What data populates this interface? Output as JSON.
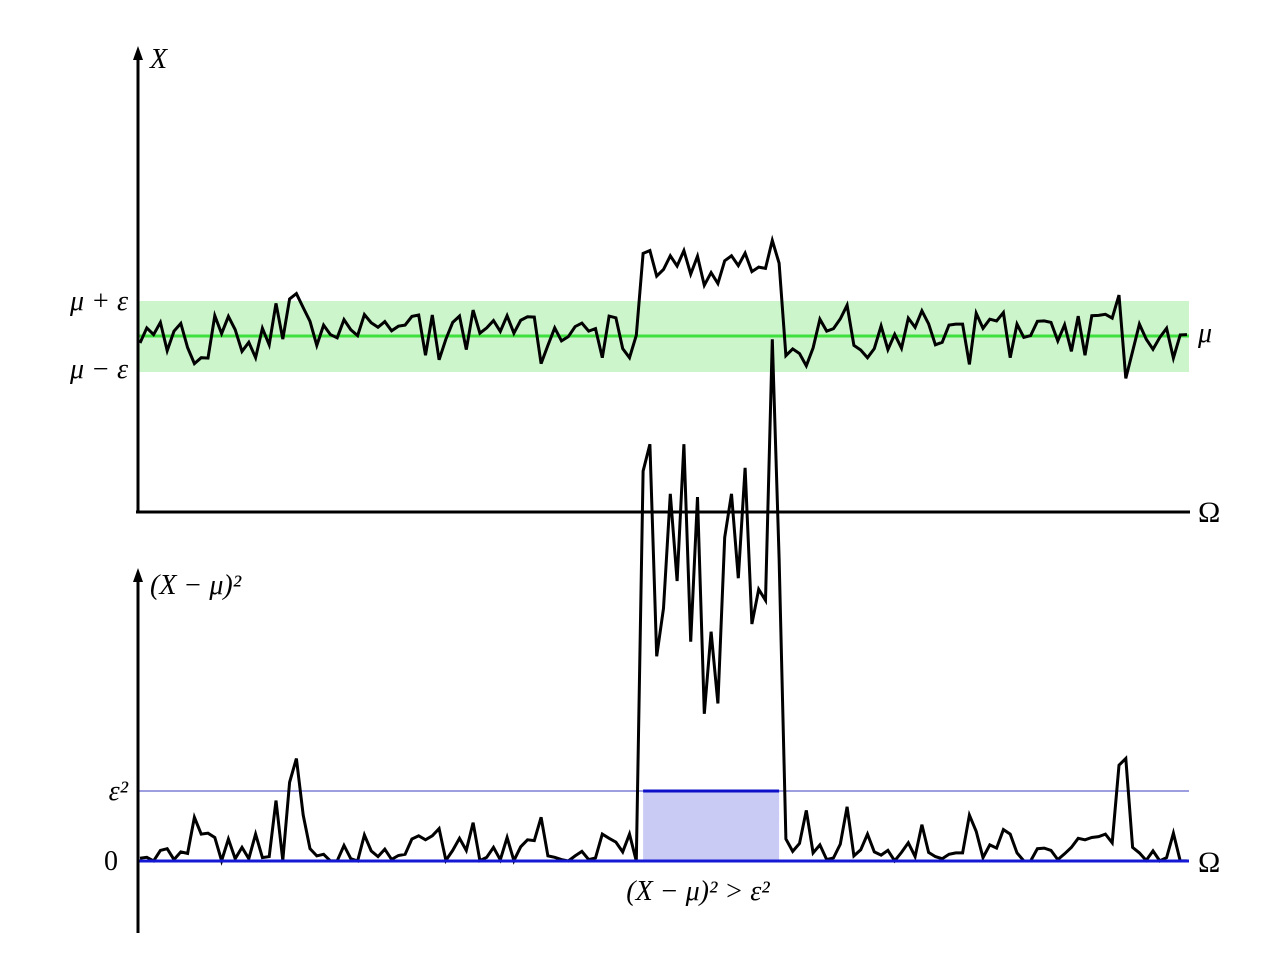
{
  "top_panel": {
    "y_axis_label": "X",
    "x_axis_label": "Ω",
    "band_upper_label": "μ + ε",
    "band_lower_label": "μ − ε",
    "mean_label": "μ",
    "colors": {
      "band_fill": "#ccf5cc",
      "mean_line": "#3ee03e",
      "curve": "#000000",
      "axis": "#000000"
    },
    "mean_level": 0,
    "epsilon": 1,
    "signal": [
      -0.2,
      0.23,
      0.04,
      0.39,
      -0.42,
      0.14,
      0.36,
      -0.33,
      -0.79,
      -0.62,
      -0.63,
      0.58,
      0.07,
      0.56,
      0.18,
      -0.44,
      -0.18,
      -0.62,
      0.22,
      -0.25,
      0.93,
      -0.09,
      1.06,
      1.21,
      0.81,
      0.42,
      -0.27,
      0.31,
      0.04,
      -0.05,
      0.47,
      0.18,
      0.01,
      0.61,
      0.38,
      0.25,
      0.41,
      0.15,
      0.28,
      0.31,
      0.56,
      0.6,
      -0.55,
      0.6,
      -0.68,
      -0.09,
      0.39,
      0.57,
      -0.39,
      0.74,
      0.08,
      0.23,
      0.44,
      0.13,
      0.58,
      0.08,
      0.45,
      0.55,
      0.54,
      -0.79,
      -0.27,
      0.23,
      -0.14,
      -0.02,
      0.27,
      0.37,
      0.14,
      0.21,
      -0.62,
      0.57,
      0.52,
      -0.36,
      -0.62,
      0.02,
      2.36,
      2.44,
      1.71,
      1.9,
      2.29,
      2.0,
      2.44,
      1.77,
      2.28,
      1.45,
      1.81,
      1.5,
      2.15,
      2.29,
      2.01,
      2.37,
      1.84,
      1.97,
      1.93,
      2.73,
      2.08,
      -0.56,
      -0.37,
      -0.5,
      -0.85,
      -0.34,
      0.48,
      0.14,
      0.21,
      0.49,
      0.88,
      -0.27,
      -0.4,
      -0.62,
      -0.36,
      0.29,
      -0.39,
      0.05,
      -0.35,
      0.51,
      0.25,
      0.72,
      0.35,
      -0.25,
      -0.18,
      0.31,
      0.34,
      0.34,
      -0.81,
      0.65,
      0.22,
      0.48,
      0.43,
      0.67,
      -0.62,
      0.34,
      -0.04,
      0.01,
      0.42,
      0.43,
      0.39,
      -0.14,
      0.32,
      -0.44,
      0.57,
      -0.55,
      0.58,
      0.59,
      0.62,
      0.51,
      1.17,
      -1.21,
      -0.44,
      0.34,
      -0.09,
      -0.38,
      -0.04,
      0.22,
      -0.63,
      0.03,
      0.04
    ]
  },
  "bottom_panel": {
    "y_axis_label": "(X − μ)²",
    "x_axis_label": "Ω",
    "threshold_label": "ε²",
    "zero_label": "0",
    "region_label": "(X − μ)² > ε²",
    "colors": {
      "region_fill": "#c9cbf4",
      "region_edge": "#0d10c8",
      "threshold_line": "#3a3cbf",
      "curve": "#000000",
      "axis": "#000000"
    },
    "region_interval": [
      74,
      94
    ]
  }
}
